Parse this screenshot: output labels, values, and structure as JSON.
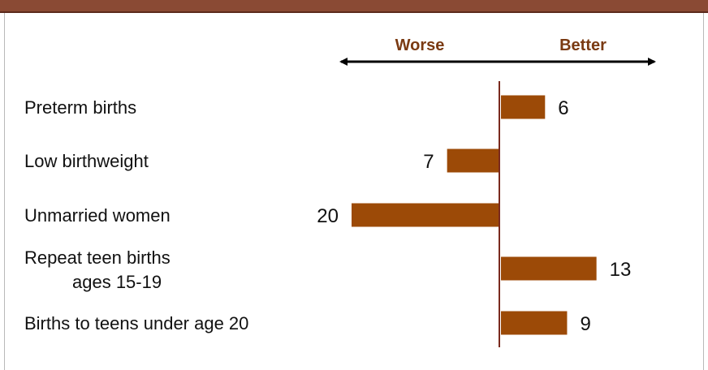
{
  "colors": {
    "bar": "#9c4a07",
    "axis": "#7a2a1e",
    "direction_text": "#7a3a12",
    "header": "#8a4a34"
  },
  "chart_data": {
    "type": "bar",
    "orientation": "horizontal",
    "title": "",
    "xlabel": "",
    "ylabel": "",
    "direction_labels": {
      "left": "Worse",
      "right": "Better"
    },
    "categories": [
      [
        "Preterm births"
      ],
      [
        "Low birthweight"
      ],
      [
        "Unmarried women"
      ],
      [
        "Repeat teen births",
        "ages 15-19"
      ],
      [
        "Births to teens under age 20"
      ]
    ],
    "values": [
      6,
      -7,
      -20,
      13,
      9
    ],
    "value_labels": [
      "6",
      "7",
      "20",
      "13",
      "9"
    ],
    "xlim": [
      -20,
      13
    ],
    "grid": false,
    "legend": "none"
  }
}
